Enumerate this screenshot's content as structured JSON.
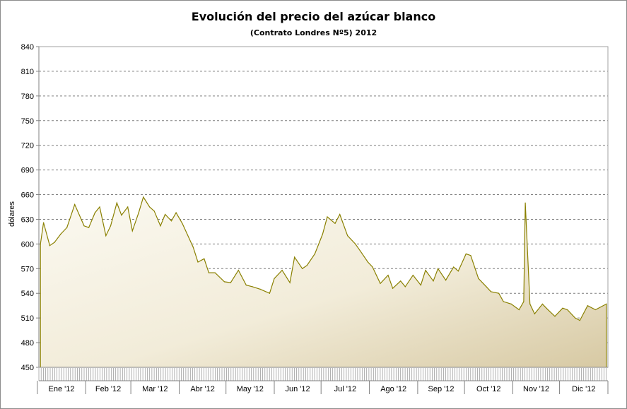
{
  "chart_data": {
    "type": "area",
    "title": "Evolución del precio del azúcar blanco",
    "subtitle": "(Contrato Londres Nº5)  2012",
    "xlabel": "",
    "ylabel": "dólares",
    "ylim": [
      450,
      840
    ],
    "yticks": [
      450,
      480,
      510,
      540,
      570,
      600,
      630,
      660,
      690,
      720,
      750,
      780,
      810,
      840
    ],
    "grid": true,
    "legend": "none",
    "months": [
      "Ene '12",
      "Feb '12",
      "Mar '12",
      "Abr '12",
      "May '12",
      "Jun '12",
      "Jul '12",
      "Ago '12",
      "Sep '12",
      "Oct '12",
      "Nov '12",
      "Dic '12"
    ],
    "series": [
      {
        "x": [
          "2012-01-03",
          "2012-01-05",
          "2012-01-09",
          "2012-01-12",
          "2012-01-16",
          "2012-01-20",
          "2012-01-25",
          "2012-01-31",
          "2012-02-03",
          "2012-02-07",
          "2012-02-10",
          "2012-02-14",
          "2012-02-17",
          "2012-02-21",
          "2012-02-24",
          "2012-02-28",
          "2012-03-02",
          "2012-03-06",
          "2012-03-09",
          "2012-03-13",
          "2012-03-16",
          "2012-03-20",
          "2012-03-23",
          "2012-03-27",
          "2012-03-30",
          "2012-04-03",
          "2012-04-10",
          "2012-04-13",
          "2012-04-17",
          "2012-04-20",
          "2012-04-24",
          "2012-04-30",
          "2012-05-04",
          "2012-05-09",
          "2012-05-14",
          "2012-05-18",
          "2012-05-23",
          "2012-05-29",
          "2012-06-01",
          "2012-06-06",
          "2012-06-11",
          "2012-06-14",
          "2012-06-19",
          "2012-06-22",
          "2012-06-27",
          "2012-07-02",
          "2012-07-05",
          "2012-07-10",
          "2012-07-13",
          "2012-07-18",
          "2012-07-23",
          "2012-07-26",
          "2012-07-31",
          "2012-08-03",
          "2012-08-08",
          "2012-08-13",
          "2012-08-16",
          "2012-08-21",
          "2012-08-24",
          "2012-08-29",
          "2012-09-03",
          "2012-09-06",
          "2012-09-11",
          "2012-09-14",
          "2012-09-19",
          "2012-09-24",
          "2012-09-27",
          "2012-10-02",
          "2012-10-05",
          "2012-10-10",
          "2012-10-15",
          "2012-10-18",
          "2012-10-23",
          "2012-10-26",
          "2012-10-31",
          "2012-11-05",
          "2012-11-08",
          "2012-11-09",
          "2012-11-12",
          "2012-11-15",
          "2012-11-20",
          "2012-11-23",
          "2012-11-28",
          "2012-12-03",
          "2012-12-06",
          "2012-12-11",
          "2012-12-14",
          "2012-12-19",
          "2012-12-24",
          "2012-12-31"
        ],
        "values": [
          600,
          626,
          598,
          602,
          612,
          620,
          648,
          622,
          620,
          638,
          645,
          610,
          622,
          650,
          635,
          645,
          616,
          638,
          657,
          645,
          640,
          622,
          636,
          628,
          638,
          625,
          596,
          578,
          582,
          565,
          565,
          554,
          553,
          568,
          550,
          548,
          545,
          540,
          558,
          568,
          553,
          584,
          570,
          574,
          588,
          612,
          633,
          625,
          636,
          610,
          600,
          592,
          578,
          572,
          552,
          562,
          546,
          555,
          548,
          562,
          550,
          568,
          555,
          570,
          556,
          572,
          567,
          588,
          586,
          558,
          548,
          542,
          540,
          530,
          527,
          520,
          530,
          650,
          527,
          515,
          527,
          521,
          512,
          522,
          520,
          510,
          507,
          525,
          520,
          527
        ]
      }
    ]
  }
}
